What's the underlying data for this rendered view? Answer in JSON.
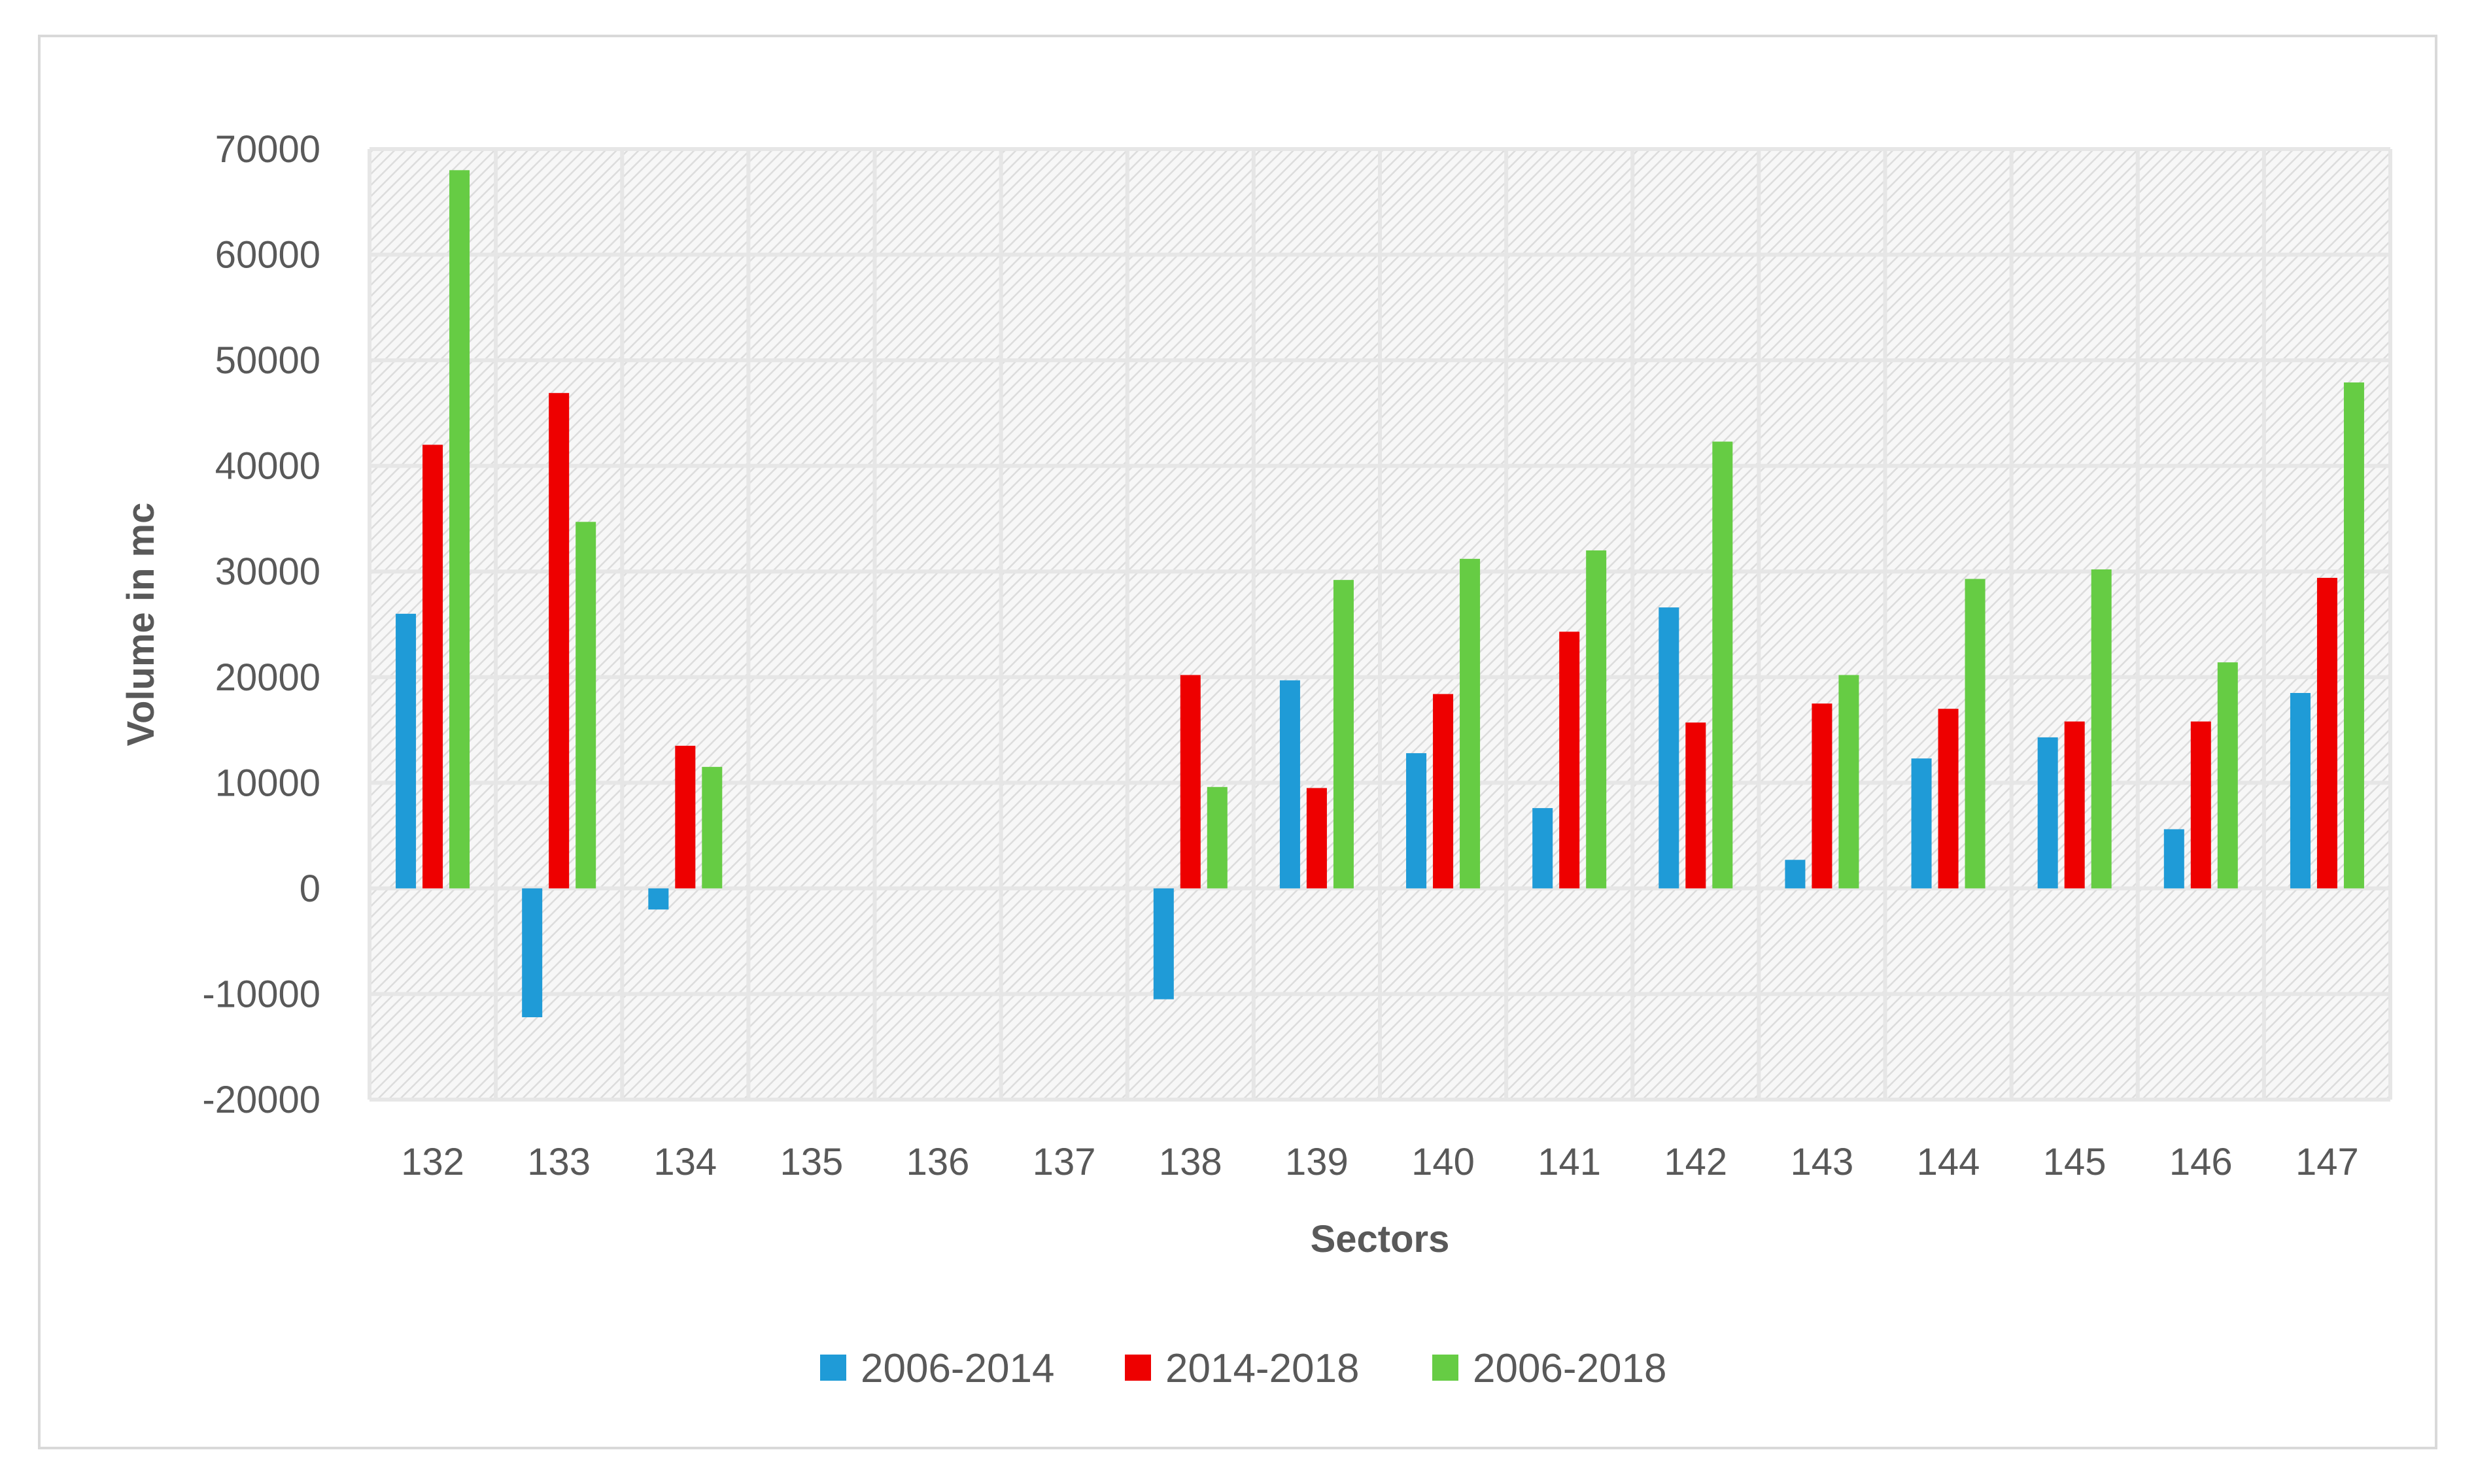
{
  "chart_data": {
    "type": "bar",
    "title": "",
    "xlabel": "Sectors",
    "ylabel": "Volume in mc",
    "ylim": [
      -20000,
      70000
    ],
    "ytick_step": 10000,
    "grid": true,
    "legend_position": "bottom",
    "categories": [
      "132",
      "133",
      "134",
      "135",
      "136",
      "137",
      "138",
      "139",
      "140",
      "141",
      "142",
      "143",
      "144",
      "145",
      "146",
      "147"
    ],
    "series": [
      {
        "name": "2006-2014",
        "color": "#1f9bd7",
        "values": [
          26000,
          -12200,
          -2000,
          null,
          null,
          null,
          -10500,
          19700,
          12800,
          7600,
          26600,
          2700,
          12300,
          14300,
          5600,
          18500
        ]
      },
      {
        "name": "2014-2018",
        "color": "#ee0000",
        "values": [
          42000,
          46900,
          13500,
          null,
          null,
          null,
          20200,
          9500,
          18400,
          24300,
          15700,
          17500,
          17000,
          15800,
          15800,
          29400
        ]
      },
      {
        "name": "2006-2018",
        "color": "#66cc44",
        "values": [
          68000,
          34700,
          11500,
          null,
          null,
          null,
          9600,
          29200,
          31200,
          32000,
          42300,
          20200,
          29300,
          30200,
          21400,
          47900
        ]
      }
    ]
  }
}
